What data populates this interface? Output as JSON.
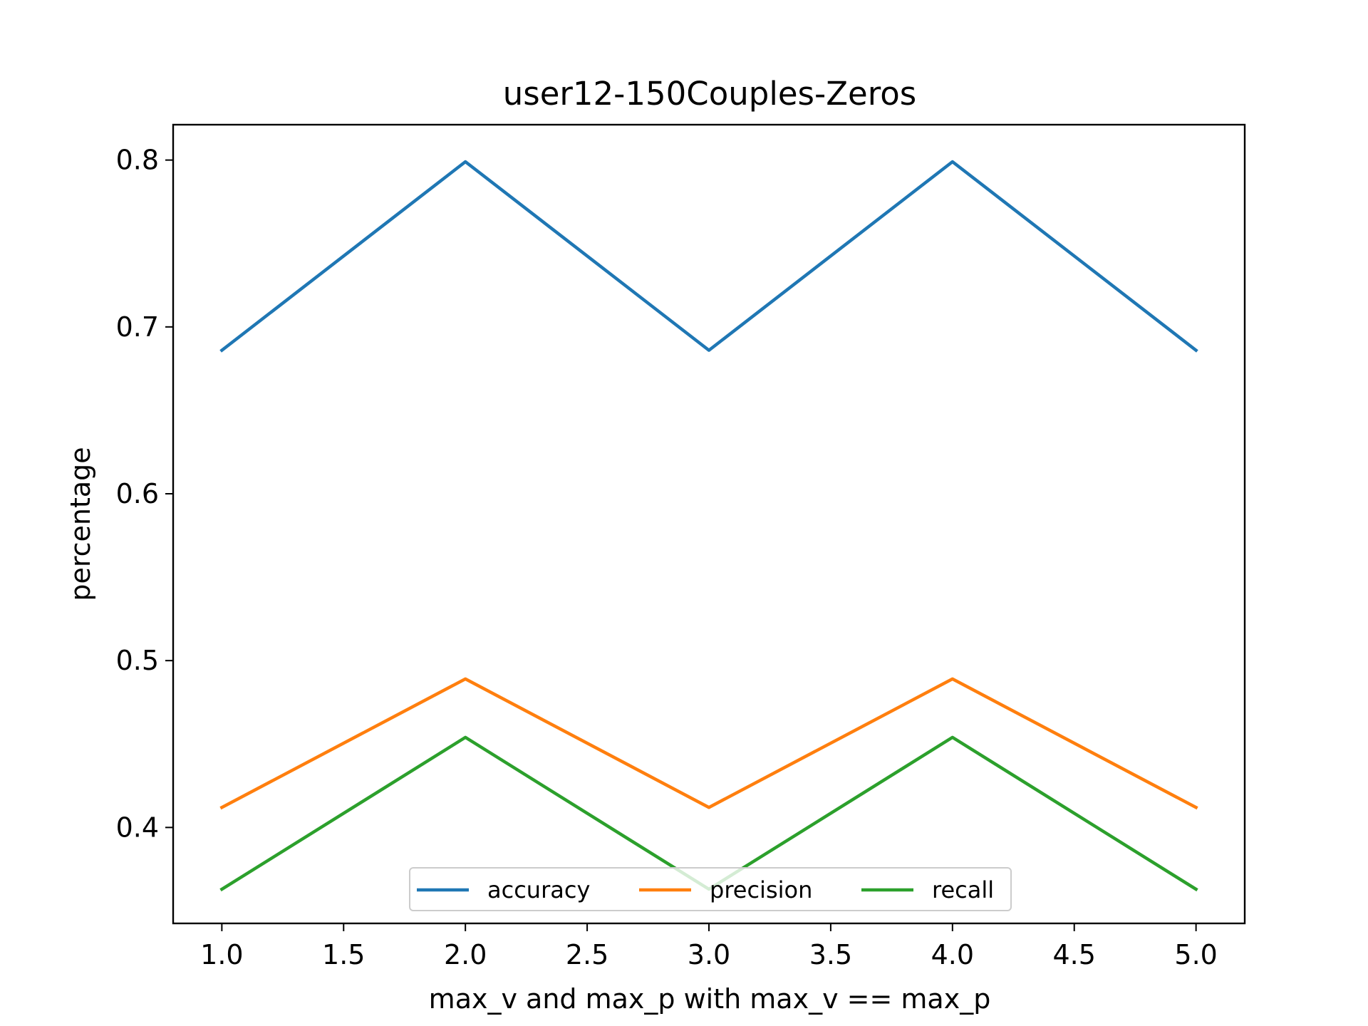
{
  "chart_data": {
    "type": "line",
    "title": "user12-150Couples-Zeros",
    "xlabel": "max_v and max_p with max_v == max_p",
    "ylabel": "percentage",
    "x": [
      1.0,
      2.0,
      3.0,
      4.0,
      5.0
    ],
    "xlim": [
      0.8,
      5.2
    ],
    "ylim": [
      0.3425,
      0.8212
    ],
    "xticks": [
      "1.0",
      "1.5",
      "2.0",
      "2.5",
      "3.0",
      "3.5",
      "4.0",
      "4.5",
      "5.0"
    ],
    "xtick_values": [
      1.0,
      1.5,
      2.0,
      2.5,
      3.0,
      3.5,
      4.0,
      4.5,
      5.0
    ],
    "yticks": [
      "0.4",
      "0.5",
      "0.6",
      "0.7",
      "0.8"
    ],
    "ytick_values": [
      0.4,
      0.5,
      0.6,
      0.7,
      0.8
    ],
    "grid": false,
    "legend": "lower-center",
    "series": [
      {
        "name": "accuracy",
        "color": "#1f77b4",
        "values": [
          0.686,
          0.799,
          0.686,
          0.799,
          0.686
        ]
      },
      {
        "name": "precision",
        "color": "#ff7f0e",
        "values": [
          0.412,
          0.489,
          0.412,
          0.489,
          0.412
        ]
      },
      {
        "name": "recall",
        "color": "#2ca02c",
        "values": [
          0.363,
          0.454,
          0.363,
          0.454,
          0.363
        ]
      }
    ]
  }
}
